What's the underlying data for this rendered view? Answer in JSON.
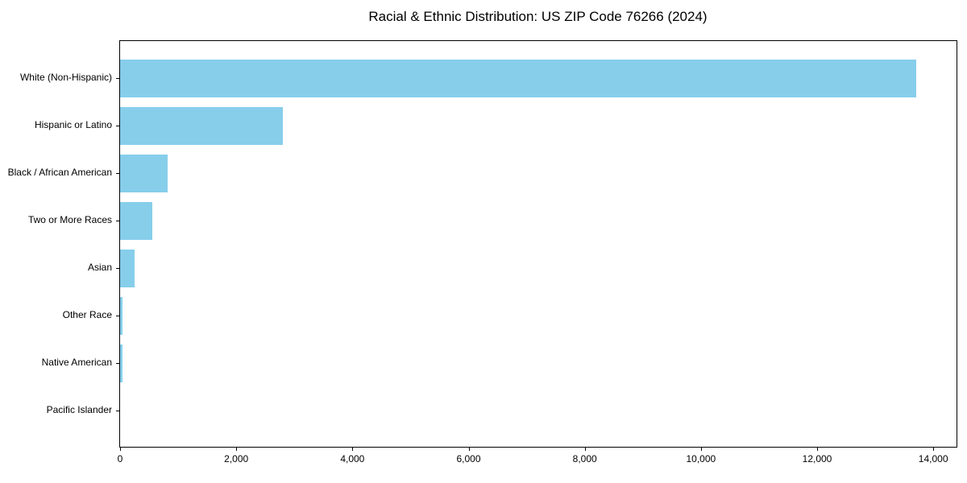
{
  "chart_data": {
    "type": "bar",
    "orientation": "horizontal",
    "title": "Racial & Ethnic Distribution: US ZIP Code 76266 (2024)",
    "categories": [
      "White (Non-Hispanic)",
      "Hispanic or Latino",
      "Black / African American",
      "Two or More Races",
      "Asian",
      "Other Race",
      "Native American",
      "Pacific Islander"
    ],
    "values": [
      13700,
      2800,
      815,
      550,
      245,
      45,
      40,
      0
    ],
    "bar_color": "#87CEEB",
    "axis_color": "#000000",
    "xlabel": "",
    "ylabel": "",
    "xlim": [
      0,
      14400
    ],
    "x_ticks": [
      0,
      2000,
      4000,
      6000,
      8000,
      10000,
      12000,
      14000
    ],
    "x_tick_labels": [
      "0",
      "2,000",
      "4,000",
      "6,000",
      "8,000",
      "10,000",
      "12,000",
      "14,000"
    ],
    "grid": false,
    "legend": false,
    "sorted": "descending"
  }
}
